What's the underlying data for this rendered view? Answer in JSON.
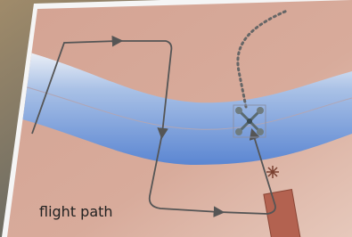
{
  "caption": "flight path"
}
